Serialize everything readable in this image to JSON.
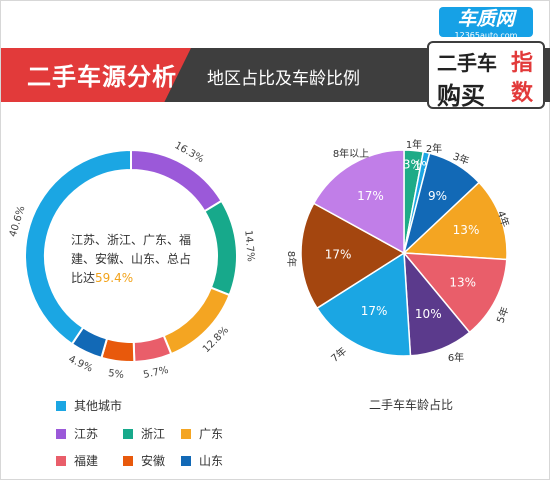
{
  "header": {
    "title": "二手车源分析",
    "subtitle": "地区占比及车龄比例"
  },
  "logo": {
    "site": "车质网",
    "url": "12365auto.com",
    "line1": "二手车",
    "line2": "购买",
    "red1": "指",
    "red2": "数"
  },
  "colors": {
    "blue": "#1ba6e3",
    "purple": "#9b59d9",
    "teal": "#17a98b",
    "orange": "#f4a522",
    "red": "#e95e6a",
    "darkorange": "#e8590c",
    "darkblue": "#1269b6",
    "green": "#1eab87",
    "violet": "#5b3a8c",
    "brown": "#a4460f",
    "lilac": "#c17ee8"
  },
  "chart_data": [
    {
      "type": "pie",
      "variant": "donut",
      "slices": [
        {
          "name": "江苏",
          "value": 16.3,
          "label": "16.3%"
        },
        {
          "name": "浙江",
          "value": 14.7,
          "label": "14.7%"
        },
        {
          "name": "广东",
          "value": 12.8,
          "label": "12.8%"
        },
        {
          "name": "福建",
          "value": 5.7,
          "label": "5.7%"
        },
        {
          "name": "安徽",
          "value": 5,
          "label": "5%"
        },
        {
          "name": "山东",
          "value": 4.9,
          "label": "4.9%"
        },
        {
          "name": "其他城市",
          "value": 40.6,
          "label": "40.6%"
        }
      ],
      "center_text_lines": [
        "江苏、浙江、广东、福",
        "建、安徽、山东、总占",
        "比达"
      ],
      "center_highlight": "59.4%",
      "legend": [
        "其他城市",
        "江苏",
        "浙江",
        "广东",
        "福建",
        "安徽",
        "山东"
      ]
    },
    {
      "type": "pie",
      "title": "二手车车龄占比",
      "slices": [
        {
          "name": "1年",
          "value": 3,
          "label": "3%"
        },
        {
          "name": "2年",
          "value": 1,
          "label": "1%"
        },
        {
          "name": "3年",
          "value": 9,
          "label": "9%"
        },
        {
          "name": "4年",
          "value": 13,
          "label": "13%"
        },
        {
          "name": "5年",
          "value": 13,
          "label": "13%"
        },
        {
          "name": "6年",
          "value": 10,
          "label": "10%"
        },
        {
          "name": "7年",
          "value": 17,
          "label": "17%"
        },
        {
          "name": "8年",
          "value": 17,
          "label": "17%"
        },
        {
          "name": "8年以上",
          "value": 17,
          "label": "17%"
        }
      ]
    }
  ]
}
